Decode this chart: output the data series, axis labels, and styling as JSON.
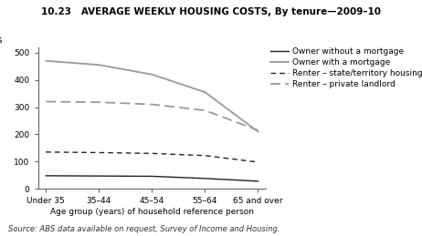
{
  "title": "10.23   AVERAGE WEEKLY HOUSING COSTS, By tenure—2009–10",
  "xlabel": "Age group (years) of household reference person",
  "ylabel": "$",
  "source": "Source: ABS data available on request, Survey of Income and Housing.",
  "x_labels": [
    "Under 35",
    "35–44",
    "45–54",
    "55–64",
    "65 and over"
  ],
  "x_positions": [
    0,
    1,
    2,
    3,
    4
  ],
  "series": [
    {
      "label": "Owner without a mortgage",
      "values": [
        48,
        47,
        46,
        38,
        28
      ],
      "color": "#222222",
      "linestyle": "solid",
      "linewidth": 1.0
    },
    {
      "label": "Owner with a mortgage",
      "values": [
        470,
        455,
        420,
        355,
        210
      ],
      "color": "#999999",
      "linestyle": "solid",
      "linewidth": 1.3
    },
    {
      "label": "Renter – state/territory housing authority",
      "values": [
        135,
        133,
        130,
        122,
        98
      ],
      "color": "#222222",
      "linestyle": "dashed",
      "linewidth": 1.0,
      "dashes": [
        4,
        3
      ]
    },
    {
      "label": "Renter – private landlord",
      "values": [
        320,
        318,
        310,
        288,
        215
      ],
      "color": "#999999",
      "linestyle": "dashed",
      "linewidth": 1.3,
      "dashes": [
        6,
        3
      ]
    }
  ],
  "ylim": [
    0,
    520
  ],
  "yticks": [
    0,
    100,
    200,
    300,
    400,
    500
  ],
  "background_color": "#ffffff",
  "legend_fontsize": 6.5,
  "title_fontsize": 7.5,
  "axis_fontsize": 6.5,
  "source_fontsize": 6.0
}
